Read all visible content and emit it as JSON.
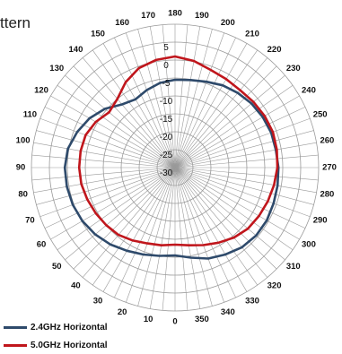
{
  "title": "ttern",
  "chart_data": {
    "type": "polar-line",
    "title": "ttern",
    "angles": [
      0,
      10,
      20,
      30,
      40,
      50,
      60,
      70,
      80,
      90,
      100,
      110,
      120,
      130,
      140,
      150,
      160,
      170,
      180,
      190,
      200,
      210,
      220,
      230,
      240,
      250,
      260,
      270,
      280,
      290,
      300,
      310,
      320,
      330,
      340,
      350
    ],
    "angle_tick_labels": [
      "0",
      "10",
      "20",
      "30",
      "40",
      "50",
      "60",
      "70",
      "80",
      "90",
      "100",
      "110",
      "120",
      "130",
      "140",
      "150",
      "160",
      "170",
      "180",
      "190",
      "200",
      "210",
      "220",
      "230",
      "240",
      "250",
      "260",
      "270",
      "280",
      "290",
      "300",
      "310",
      "320",
      "330",
      "340",
      "350"
    ],
    "radial_ticks": [
      5,
      0,
      -5,
      -10,
      -15,
      -20,
      -25,
      -30
    ],
    "radial_range": [
      -30,
      10
    ],
    "angle_direction": "counterclockwise, 0 at bottom",
    "grid": true,
    "legend_position": "bottom-left",
    "series": [
      {
        "name": "2.4GHz Horizontal",
        "color": "#2e4a6b",
        "values": [
          -5.5,
          -5.0,
          -4.2,
          -3.2,
          -2.0,
          -1.0,
          -0.2,
          0.3,
          0.6,
          0.7,
          0.3,
          -1.0,
          -2.5,
          -4.5,
          -7.0,
          -8.0,
          -7.0,
          -6.0,
          -5.5,
          -5.2,
          -4.5,
          -3.5,
          -2.8,
          -2.2,
          -1.8,
          -1.5,
          -1.5,
          -1.2,
          -1.0,
          -0.8,
          -0.5,
          -0.5,
          -1.0,
          -2.0,
          -3.0,
          -4.5
        ]
      },
      {
        "name": "5.0GHz Horizontal",
        "color": "#c0161c",
        "values": [
          -8.5,
          -8.0,
          -7.5,
          -6.5,
          -5.5,
          -5.0,
          -4.5,
          -4.0,
          -3.5,
          -3.3,
          -3.3,
          -3.5,
          -4.5,
          -6.0,
          -5.0,
          -2.5,
          -0.5,
          0.5,
          1.0,
          0.2,
          -1.0,
          -1.5,
          -1.8,
          -1.5,
          -1.2,
          -1.0,
          -1.2,
          -1.5,
          -2.0,
          -2.5,
          -3.0,
          -3.5,
          -4.5,
          -5.8,
          -7.0,
          -8.0
        ]
      }
    ]
  }
}
